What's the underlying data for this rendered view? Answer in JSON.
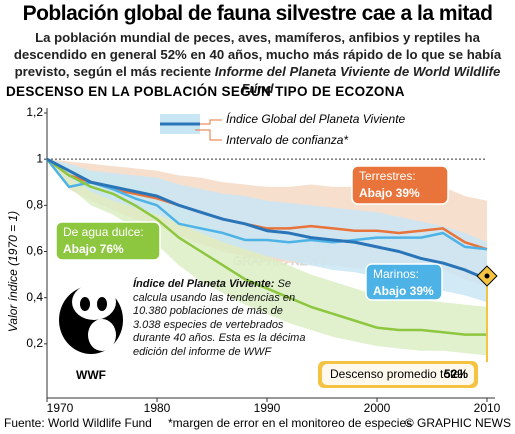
{
  "chart_data": {
    "type": "line",
    "title": "Población global de fauna silvestre cae a la mitad",
    "subtitle": "La población mundial de peces, aves, mamíferos, anfibios y reptiles ha descendido en general 52% en 40 años, mucho más rápido de lo que se había previsto, según el más reciente",
    "subtitle_source": "Informe del Planeta Viviente de World Wildlife Fund",
    "section_title": "DESCENSO EN LA POBLACIÓN SEGÚN TIPO DE ECOZONA",
    "ylabel": "Valor índice (1970 = 1)",
    "x": [
      1970,
      1972,
      1974,
      1976,
      1978,
      1980,
      1982,
      1984,
      1986,
      1988,
      1990,
      1992,
      1994,
      1996,
      1998,
      2000,
      2002,
      2004,
      2006,
      2008,
      2010
    ],
    "xlim": [
      1970,
      2010
    ],
    "xticks": [
      1970,
      1980,
      1990,
      2000,
      2010
    ],
    "ylim": [
      0,
      1.2
    ],
    "yticks": [
      {
        "value": 0.2,
        "label": "0,2"
      },
      {
        "value": 0.4,
        "label": "0,4"
      },
      {
        "value": 0.6,
        "label": "0,6"
      },
      {
        "value": 0.8,
        "label": "0,8"
      },
      1,
      {
        "value": 1.2,
        "label": "1,2"
      }
    ],
    "reference_line": 1,
    "band_label": "Intervalo de confianza*",
    "series": [
      {
        "name": "Terrestres:",
        "callout": "Abajo 39%",
        "color": "#e8743b",
        "band_color": "#f6d9c6",
        "values": [
          1,
          0.93,
          0.9,
          0.87,
          0.85,
          0.83,
          0.8,
          0.77,
          0.74,
          0.72,
          0.7,
          0.7,
          0.71,
          0.7,
          0.69,
          0.69,
          0.68,
          0.69,
          0.7,
          0.64,
          0.61
        ],
        "band_high": [
          1,
          0.99,
          0.98,
          0.97,
          0.96,
          0.95,
          0.93,
          0.92,
          0.9,
          0.89,
          0.88,
          0.88,
          0.89,
          0.88,
          0.88,
          0.87,
          0.87,
          0.87,
          0.88,
          0.84,
          0.82
        ],
        "band_low": [
          1,
          0.87,
          0.82,
          0.78,
          0.74,
          0.71,
          0.67,
          0.63,
          0.6,
          0.58,
          0.56,
          0.55,
          0.55,
          0.54,
          0.53,
          0.52,
          0.51,
          0.52,
          0.52,
          0.48,
          0.45
        ]
      },
      {
        "name": "Marinos:",
        "callout": "Abajo 39%",
        "color": "#4db3e6",
        "values": [
          1,
          0.88,
          0.9,
          0.87,
          0.83,
          0.8,
          0.72,
          0.7,
          0.68,
          0.65,
          0.65,
          0.64,
          0.65,
          0.64,
          0.65,
          0.66,
          0.66,
          0.66,
          0.68,
          0.62,
          0.61
        ]
      },
      {
        "name": "De agua dulce:",
        "callout": "Abajo 76%",
        "color": "#8dc63f",
        "band_color": "#dcedc4",
        "values": [
          1,
          0.93,
          0.88,
          0.85,
          0.8,
          0.74,
          0.66,
          0.6,
          0.54,
          0.48,
          0.44,
          0.4,
          0.36,
          0.33,
          0.3,
          0.27,
          0.26,
          0.26,
          0.25,
          0.24,
          0.24
        ],
        "band_high": [
          1,
          0.97,
          0.95,
          0.93,
          0.9,
          0.86,
          0.8,
          0.74,
          0.68,
          0.62,
          0.58,
          0.54,
          0.5,
          0.47,
          0.44,
          0.41,
          0.4,
          0.39,
          0.38,
          0.37,
          0.36
        ],
        "band_low": [
          1,
          0.88,
          0.8,
          0.76,
          0.7,
          0.63,
          0.54,
          0.47,
          0.42,
          0.37,
          0.33,
          0.29,
          0.26,
          0.23,
          0.21,
          0.19,
          0.18,
          0.17,
          0.17,
          0.16,
          0.15
        ]
      },
      {
        "name": "Índice Global del Planeta Viviente",
        "color": "#2a74b8",
        "band_color": "#c9e6f5",
        "values": [
          1,
          0.95,
          0.9,
          0.88,
          0.86,
          0.84,
          0.8,
          0.77,
          0.74,
          0.72,
          0.69,
          0.68,
          0.66,
          0.65,
          0.64,
          0.62,
          0.6,
          0.57,
          0.55,
          0.52,
          0.48
        ],
        "band_high": [
          1,
          0.98,
          0.95,
          0.94,
          0.93,
          0.92,
          0.89,
          0.87,
          0.85,
          0.84,
          0.82,
          0.81,
          0.8,
          0.79,
          0.78,
          0.77,
          0.75,
          0.73,
          0.71,
          0.68,
          0.64
        ],
        "band_low": [
          1,
          0.92,
          0.86,
          0.82,
          0.79,
          0.76,
          0.72,
          0.68,
          0.64,
          0.61,
          0.58,
          0.56,
          0.54,
          0.52,
          0.51,
          0.49,
          0.47,
          0.45,
          0.43,
          0.41,
          0.38
        ]
      }
    ],
    "total_label": "Descenso promedio total:",
    "total_value_label": "52%",
    "wwf_title": "Índice del Planeta Viviente:",
    "wwf_text": "Se calcula usando las tendencias en 10.380 poblaciones de más de 3.038 especies de vertebrados durante 40 años. Esta es la décima edición del informe de WWF",
    "wwf_logo": "WWF",
    "watermark": "GRAPHIC NEWS",
    "source": "Fuente: World Wildlife Fund",
    "footnote": "*margen de error en el monitoreo de especies",
    "credit": "© GRAPHIC NEWS"
  }
}
